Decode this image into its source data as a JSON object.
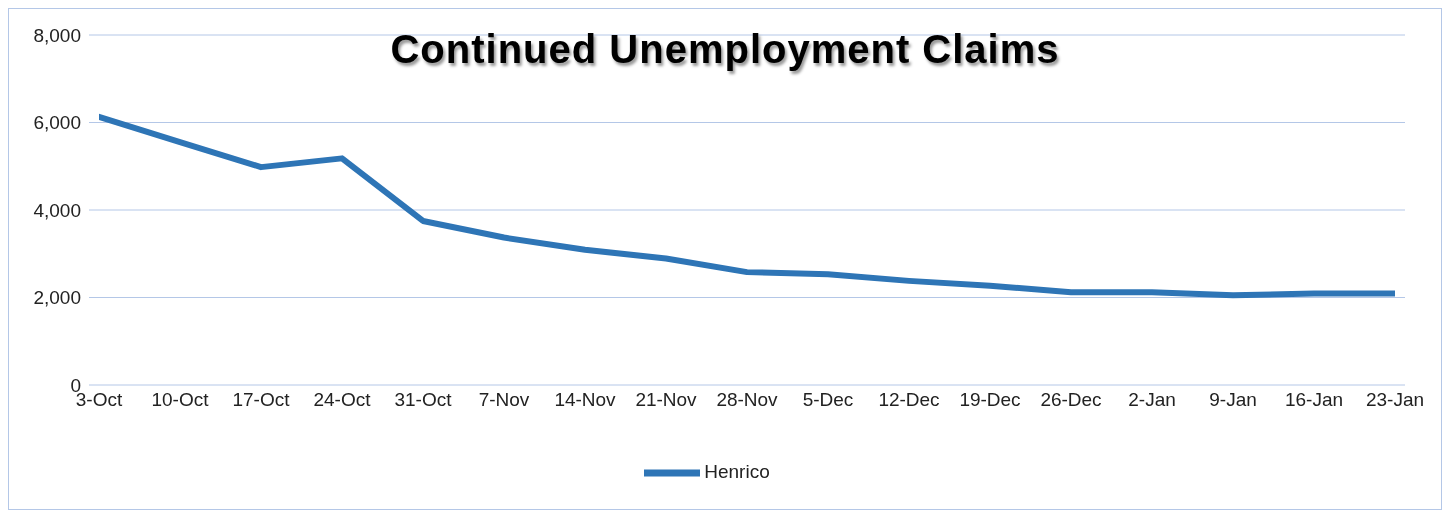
{
  "chart_data": {
    "type": "line",
    "title": "Continued Unemployment Claims",
    "categories": [
      "3-Oct",
      "10-Oct",
      "17-Oct",
      "24-Oct",
      "31-Oct",
      "7-Nov",
      "14-Nov",
      "21-Nov",
      "28-Nov",
      "5-Dec",
      "12-Dec",
      "19-Dec",
      "26-Dec",
      "2-Jan",
      "9-Jan",
      "16-Jan",
      "23-Jan"
    ],
    "series": [
      {
        "name": "Henrico",
        "color": "#2e75b6",
        "values": [
          6130,
          5550,
          4980,
          5180,
          3750,
          3370,
          3090,
          2890,
          2580,
          2530,
          2380,
          2270,
          2120,
          2120,
          2050,
          2090,
          2090
        ]
      }
    ],
    "ylim": [
      0,
      8000
    ],
    "yticks": [
      {
        "value": 0,
        "label": "0"
      },
      {
        "value": 2000,
        "label": "2,000"
      },
      {
        "value": 4000,
        "label": "4,000"
      },
      {
        "value": 6000,
        "label": "6,000"
      },
      {
        "value": 8000,
        "label": "8,000"
      }
    ],
    "grid": "y",
    "legend": "bottom",
    "marker": "none",
    "line_style": "solid"
  }
}
